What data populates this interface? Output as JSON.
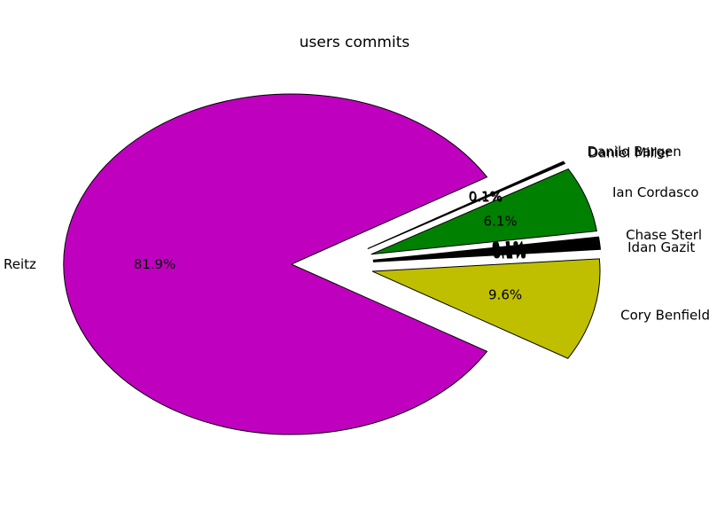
{
  "chart_data": {
    "type": "pie",
    "title": "users commits",
    "slices": [
      {
        "label": "Kenneth Reitz",
        "value": 81.9,
        "pct_label": "81.9%",
        "color": "#bf00bf",
        "exploded": true
      },
      {
        "label": "Cory Benfield",
        "value": 9.6,
        "pct_label": "9.6%",
        "color": "#bfbf00",
        "exploded": true
      },
      {
        "label": "Idan Gazit",
        "value": 0.1,
        "pct_label": "0.1%",
        "color": "#000000",
        "exploded": true
      },
      {
        "label": "",
        "value": 0.1,
        "pct_label": "0.1%",
        "color": "#000000",
        "exploded": true
      },
      {
        "label": "",
        "value": 0.1,
        "pct_label": "0.1%",
        "color": "#000000",
        "exploded": true
      },
      {
        "label": "",
        "value": 0.1,
        "pct_label": "0.1%",
        "color": "#000000",
        "exploded": true
      },
      {
        "label": "",
        "value": 0.1,
        "pct_label": "0.1%",
        "color": "#000000",
        "exploded": true
      },
      {
        "label": "",
        "value": 0.1,
        "pct_label": "0.1%",
        "color": "#000000",
        "exploded": true
      },
      {
        "label": "",
        "value": 0.1,
        "pct_label": "0.1%",
        "color": "#000000",
        "exploded": true
      },
      {
        "label": "",
        "value": 0.1,
        "pct_label": "0.1%",
        "color": "#000000",
        "exploded": true
      },
      {
        "label": "",
        "value": 0.1,
        "pct_label": "0.1%",
        "color": "#000000",
        "exploded": true
      },
      {
        "label": "Chase Sterl",
        "value": 0.1,
        "pct_label": "0.1%",
        "color": "#000000",
        "exploded": true
      },
      {
        "label": "Ian Cordasco",
        "value": 6.1,
        "pct_label": "6.1%",
        "color": "#008000",
        "exploded": true
      },
      {
        "label": "Daniel Miller",
        "value": 0.1,
        "pct_label": "0.1%",
        "color": "#000000",
        "exploded": true
      },
      {
        "label": "Danilo Bargen",
        "value": 0.1,
        "pct_label": "0.1%",
        "color": "#000000",
        "exploded": true
      }
    ]
  }
}
